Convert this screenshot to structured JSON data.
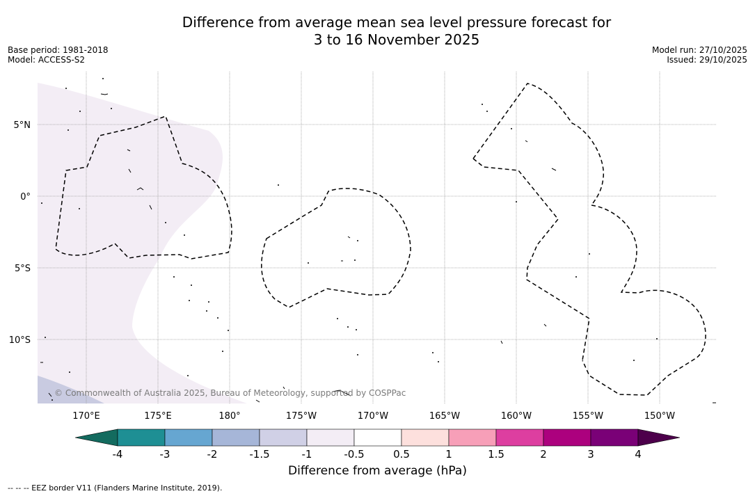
{
  "header": {
    "title_line1": "Difference from average mean sea level pressure forecast for",
    "title_line2": "3 to 16 November 2025",
    "base_period": "Base period: 1981-2018",
    "model": "Model: ACCESS-S2",
    "model_run": "Model run: 27/10/2025",
    "issued": "Issued: 29/10/2025"
  },
  "map": {
    "longitude_ticks": [
      "170°E",
      "175°E",
      "180°",
      "175°W",
      "170°W",
      "165°W",
      "160°W",
      "155°W",
      "150°W"
    ],
    "latitude_ticks": [
      "5°N",
      "0°",
      "5°S",
      "10°S"
    ],
    "copyright": "© Commonwealth of Australia 2025, Bureau of Meteorology, supported by COSPPac",
    "colors": {
      "lavender_fill": "#f3edf5",
      "blue_fill": "#c9cbe1",
      "eez_line": "#000000"
    }
  },
  "colorbar": {
    "title": "Difference from average (hPa)",
    "ticks": [
      "-4",
      "-3",
      "-2",
      "-1.5",
      "-1",
      "-0.5",
      "0.5",
      "1",
      "1.5",
      "2",
      "3",
      "4"
    ],
    "colors": [
      "#136b5f",
      "#1e8f94",
      "#66a6d1",
      "#a6b6d8",
      "#d0d0e6",
      "#f3edf5",
      "#ffffff",
      "#fde0dd",
      "#f79fb8",
      "#dd3ea0",
      "#ac017e",
      "#7a0177",
      "#4d004b"
    ]
  },
  "footer": {
    "eez_note": "--  --  -- EEZ border V11 (Flanders Marine Institute, 2019)."
  }
}
